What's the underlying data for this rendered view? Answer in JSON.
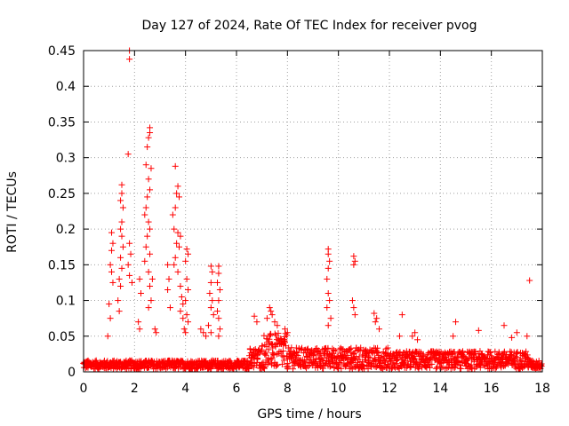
{
  "chart_data": {
    "type": "scatter",
    "title": "Day 127 of 2024, Rate Of TEC Index for receiver pvog",
    "xlabel": "GPS time / hours",
    "ylabel": "ROTI / TECUs",
    "xlim": [
      0,
      18
    ],
    "ylim": [
      0,
      0.45
    ],
    "xticks": [
      "0",
      "2",
      "4",
      "6",
      "8",
      "10",
      "12",
      "14",
      "16",
      "18"
    ],
    "yticks": [
      "0",
      "0.05",
      "0.1",
      "0.15",
      "0.2",
      "0.25",
      "0.3",
      "0.35",
      "0.4",
      "0.45"
    ],
    "grid": true,
    "marker": "plus",
    "color": "#ff0000",
    "series": [
      {
        "name": "ROTI",
        "points": [
          [
            1.8,
            0.45
          ],
          [
            1.8,
            0.438
          ],
          [
            1.75,
            0.305
          ],
          [
            2.6,
            0.342
          ],
          [
            2.6,
            0.335
          ],
          [
            2.55,
            0.328
          ],
          [
            2.5,
            0.315
          ],
          [
            2.65,
            0.285
          ],
          [
            2.45,
            0.29
          ],
          [
            2.55,
            0.27
          ],
          [
            2.6,
            0.255
          ],
          [
            2.5,
            0.245
          ],
          [
            2.45,
            0.23
          ],
          [
            2.4,
            0.22
          ],
          [
            2.55,
            0.21
          ],
          [
            2.6,
            0.2
          ],
          [
            2.5,
            0.19
          ],
          [
            2.45,
            0.175
          ],
          [
            2.6,
            0.165
          ],
          [
            2.4,
            0.155
          ],
          [
            2.55,
            0.14
          ],
          [
            2.7,
            0.13
          ],
          [
            2.6,
            0.12
          ],
          [
            2.65,
            0.1
          ],
          [
            2.55,
            0.09
          ],
          [
            2.8,
            0.06
          ],
          [
            2.85,
            0.055
          ],
          [
            1.5,
            0.262
          ],
          [
            1.5,
            0.25
          ],
          [
            1.45,
            0.24
          ],
          [
            1.55,
            0.23
          ],
          [
            1.5,
            0.21
          ],
          [
            1.45,
            0.2
          ],
          [
            1.5,
            0.19
          ],
          [
            1.55,
            0.175
          ],
          [
            1.45,
            0.16
          ],
          [
            1.5,
            0.145
          ],
          [
            1.4,
            0.13
          ],
          [
            1.45,
            0.12
          ],
          [
            1.35,
            0.1
          ],
          [
            1.4,
            0.085
          ],
          [
            1.1,
            0.195
          ],
          [
            1.15,
            0.18
          ],
          [
            1.1,
            0.17
          ],
          [
            1.05,
            0.15
          ],
          [
            1.1,
            0.14
          ],
          [
            1.15,
            0.125
          ],
          [
            1.0,
            0.095
          ],
          [
            1.05,
            0.075
          ],
          [
            0.95,
            0.05
          ],
          [
            1.8,
            0.18
          ],
          [
            1.85,
            0.165
          ],
          [
            1.75,
            0.15
          ],
          [
            1.8,
            0.135
          ],
          [
            1.9,
            0.125
          ],
          [
            2.2,
            0.13
          ],
          [
            2.25,
            0.11
          ],
          [
            2.15,
            0.07
          ],
          [
            2.2,
            0.06
          ],
          [
            3.6,
            0.288
          ],
          [
            3.7,
            0.26
          ],
          [
            3.65,
            0.25
          ],
          [
            3.75,
            0.245
          ],
          [
            3.6,
            0.23
          ],
          [
            3.5,
            0.22
          ],
          [
            3.55,
            0.2
          ],
          [
            3.7,
            0.195
          ],
          [
            3.8,
            0.19
          ],
          [
            3.65,
            0.18
          ],
          [
            3.75,
            0.175
          ],
          [
            3.6,
            0.16
          ],
          [
            3.55,
            0.15
          ],
          [
            3.7,
            0.14
          ],
          [
            3.8,
            0.12
          ],
          [
            3.85,
            0.105
          ],
          [
            3.9,
            0.095
          ],
          [
            3.8,
            0.085
          ],
          [
            3.9,
            0.075
          ],
          [
            3.95,
            0.06
          ],
          [
            4.05,
            0.172
          ],
          [
            4.1,
            0.165
          ],
          [
            4.0,
            0.155
          ],
          [
            4.05,
            0.13
          ],
          [
            4.1,
            0.115
          ],
          [
            4.0,
            0.1
          ],
          [
            4.05,
            0.08
          ],
          [
            4.1,
            0.07
          ],
          [
            4.0,
            0.055
          ],
          [
            3.3,
            0.15
          ],
          [
            3.35,
            0.13
          ],
          [
            3.3,
            0.115
          ],
          [
            3.4,
            0.09
          ],
          [
            5.0,
            0.148
          ],
          [
            5.05,
            0.14
          ],
          [
            5.0,
            0.125
          ],
          [
            4.95,
            0.11
          ],
          [
            5.05,
            0.1
          ],
          [
            5.0,
            0.09
          ],
          [
            5.1,
            0.08
          ],
          [
            4.9,
            0.065
          ],
          [
            5.0,
            0.055
          ],
          [
            5.3,
            0.148
          ],
          [
            5.3,
            0.138
          ],
          [
            5.25,
            0.125
          ],
          [
            5.35,
            0.115
          ],
          [
            5.3,
            0.1
          ],
          [
            5.25,
            0.085
          ],
          [
            5.3,
            0.075
          ],
          [
            5.35,
            0.06
          ],
          [
            5.3,
            0.05
          ],
          [
            4.6,
            0.06
          ],
          [
            4.7,
            0.055
          ],
          [
            4.8,
            0.05
          ],
          [
            6.7,
            0.078
          ],
          [
            6.8,
            0.07
          ],
          [
            7.3,
            0.09
          ],
          [
            7.35,
            0.085
          ],
          [
            7.4,
            0.08
          ],
          [
            7.2,
            0.075
          ],
          [
            7.5,
            0.07
          ],
          [
            7.6,
            0.065
          ],
          [
            7.9,
            0.06
          ],
          [
            8.0,
            0.055
          ],
          [
            9.6,
            0.172
          ],
          [
            9.6,
            0.165
          ],
          [
            9.65,
            0.155
          ],
          [
            9.6,
            0.145
          ],
          [
            9.55,
            0.13
          ],
          [
            9.6,
            0.11
          ],
          [
            9.65,
            0.1
          ],
          [
            9.55,
            0.09
          ],
          [
            9.7,
            0.075
          ],
          [
            9.6,
            0.065
          ],
          [
            10.6,
            0.162
          ],
          [
            10.65,
            0.155
          ],
          [
            10.6,
            0.15
          ],
          [
            10.55,
            0.1
          ],
          [
            10.6,
            0.09
          ],
          [
            10.65,
            0.08
          ],
          [
            11.4,
            0.082
          ],
          [
            11.5,
            0.075
          ],
          [
            11.45,
            0.07
          ],
          [
            11.6,
            0.06
          ],
          [
            12.5,
            0.08
          ],
          [
            12.4,
            0.05
          ],
          [
            12.9,
            0.05
          ],
          [
            13.0,
            0.055
          ],
          [
            13.1,
            0.045
          ],
          [
            14.6,
            0.07
          ],
          [
            14.5,
            0.05
          ],
          [
            15.5,
            0.058
          ],
          [
            16.5,
            0.065
          ],
          [
            16.8,
            0.048
          ],
          [
            17.0,
            0.055
          ],
          [
            17.5,
            0.128
          ],
          [
            17.4,
            0.05
          ]
        ]
      }
    ]
  }
}
